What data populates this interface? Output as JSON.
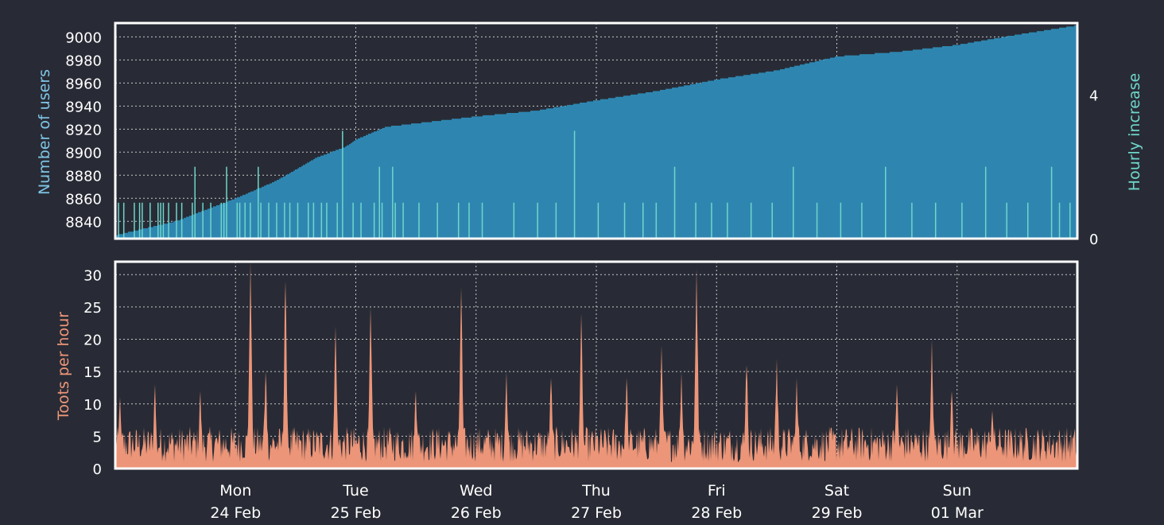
{
  "colors": {
    "background": "#282b35",
    "frame": "#ffffff",
    "grid": "#c8c8c8",
    "users_fill": "#2e86b0",
    "hourly_fill": "#6fd6cc",
    "toots_fill": "#ec9578",
    "users_label": "#7fc6e6",
    "hourly_label": "#6fd6cc",
    "toots_label": "#ec9578"
  },
  "chart_data": [
    {
      "type": "area",
      "panel": "users",
      "ylabel": "Number of users",
      "y2label": "Hourly increase",
      "ylim": [
        8825,
        9012
      ],
      "yticks": [
        8840,
        8860,
        8880,
        8900,
        8920,
        8940,
        8960,
        8980,
        9000
      ],
      "y2lim": [
        0,
        6
      ],
      "y2ticks": [
        0,
        4
      ],
      "grid": true,
      "x_range": [
        "2020-02-23T00:00",
        "2020-03-02T00:00"
      ],
      "series": [
        {
          "points": [
            [
              "2020-02-23T00:00",
              8828
            ],
            [
              "2020-02-23T12:00",
              8840
            ],
            [
              "2020-02-24T00:00",
              8860
            ],
            [
              "2020-02-24T08:00",
              8875
            ],
            [
              "2020-02-24T16:00",
              8895
            ],
            [
              "2020-02-24T22:00",
              8905
            ],
            [
              "2020-02-25T00:00",
              8911
            ],
            [
              "2020-02-25T06:00",
              8922
            ],
            [
              "2020-02-25T12:00",
              8925
            ],
            [
              "2020-02-26T00:00",
              8931
            ],
            [
              "2020-02-26T12:00",
              8936
            ],
            [
              "2020-02-27T00:00",
              8945
            ],
            [
              "2020-02-27T12:00",
              8953
            ],
            [
              "2020-02-28T00:00",
              8963
            ],
            [
              "2020-02-28T12:00",
              8971
            ],
            [
              "2020-02-29T00:00",
              8983
            ],
            [
              "2020-02-29T12:00",
              8987
            ],
            [
              "2020-03-01T00:00",
              8993
            ],
            [
              "2020-03-01T12:00",
              9002
            ],
            [
              "2020-03-02T00:00",
              9010
            ]
          ]
        },
        {
          "values_hourly": [
            0,
            1,
            0,
            1,
            0,
            0,
            0,
            1,
            0,
            1,
            1,
            0,
            0,
            1,
            0,
            0,
            1,
            1,
            1,
            0,
            1,
            0,
            0,
            1,
            0,
            1,
            0,
            0,
            0,
            1,
            2,
            0,
            0,
            1,
            0,
            0,
            1,
            0,
            0,
            0,
            1,
            1,
            2,
            0,
            0,
            0,
            1,
            1,
            0,
            1,
            0,
            1,
            0,
            0,
            2,
            1,
            0,
            0,
            1,
            0,
            0,
            1,
            0,
            0,
            1,
            0,
            1,
            0,
            0,
            1,
            0,
            0,
            0,
            1,
            0,
            1,
            0,
            0,
            1,
            0,
            1,
            0,
            0,
            0,
            1,
            0,
            3,
            0,
            0,
            0,
            1,
            0,
            0,
            1,
            0,
            0,
            0,
            0,
            1,
            0,
            2,
            1,
            0,
            0,
            0,
            2,
            1,
            0,
            0,
            1,
            0,
            0,
            0,
            0,
            0,
            1,
            0,
            0,
            0,
            0,
            0,
            0,
            1,
            0,
            0,
            0,
            0,
            0,
            0,
            0,
            1,
            0,
            0,
            0,
            1,
            0,
            0,
            0,
            0,
            1,
            0,
            0,
            0,
            0,
            0,
            0,
            0,
            0,
            0,
            0,
            0,
            1,
            0,
            0,
            0,
            0,
            0,
            0,
            0,
            0,
            1,
            0,
            0,
            0,
            0,
            0,
            0,
            1,
            0,
            0,
            0,
            0,
            0,
            0,
            3,
            0,
            0,
            0,
            0,
            0,
            0,
            0,
            0,
            1,
            0,
            0,
            0,
            0,
            0,
            0,
            0,
            0,
            0,
            1,
            0,
            0,
            0,
            0,
            0,
            0,
            1,
            0,
            0,
            0,
            0,
            1,
            0,
            0,
            0,
            0,
            0,
            0,
            2,
            0,
            0,
            0,
            0,
            0,
            0,
            0,
            1,
            0,
            0,
            0,
            0,
            0,
            1,
            0,
            0,
            0,
            0,
            0,
            1,
            0,
            0,
            0,
            0,
            0,
            0,
            0,
            0,
            1,
            0,
            0,
            0,
            0,
            0,
            0,
            0,
            1,
            0,
            0,
            0,
            0,
            0,
            0,
            0,
            2,
            0,
            0,
            0,
            0,
            0,
            0,
            0,
            0,
            1,
            0,
            0,
            0,
            0,
            0,
            0,
            0,
            0,
            1,
            0,
            0,
            0,
            0,
            0,
            0,
            0,
            1,
            0,
            0,
            0,
            0,
            0,
            0,
            0,
            0,
            2,
            0,
            0,
            0,
            0,
            0,
            0,
            0,
            0,
            0,
            1,
            0,
            0,
            0,
            0,
            0,
            0,
            0,
            0,
            1,
            0,
            0,
            0,
            0,
            0,
            0,
            0,
            0,
            0,
            1,
            0,
            0,
            0,
            0,
            0,
            0,
            0,
            0,
            2,
            0,
            0,
            0,
            0,
            0,
            0,
            0,
            1,
            0,
            0,
            0,
            0,
            0,
            0,
            0,
            1,
            0,
            0,
            0,
            0,
            0,
            0,
            0,
            0,
            2,
            0,
            0,
            1,
            0,
            0,
            0,
            1,
            0,
            0
          ]
        }
      ]
    },
    {
      "type": "bar",
      "panel": "toots",
      "ylabel": "Toots per hour",
      "ylim": [
        0,
        32
      ],
      "yticks": [
        0,
        5,
        10,
        15,
        20,
        25,
        30
      ],
      "grid": true,
      "x_range": [
        "2020-02-23T00:00",
        "2020-03-02T00:00"
      ],
      "peaks": [
        [
          "2020-02-23T01:00",
          11
        ],
        [
          "2020-02-23T08:00",
          13
        ],
        [
          "2020-02-23T17:00",
          12
        ],
        [
          "2020-02-24T03:00",
          32
        ],
        [
          "2020-02-24T06:00",
          15
        ],
        [
          "2020-02-24T10:00",
          29
        ],
        [
          "2020-02-24T20:00",
          22
        ],
        [
          "2020-02-25T03:00",
          25
        ],
        [
          "2020-02-25T12:00",
          12
        ],
        [
          "2020-02-25T21:00",
          28
        ],
        [
          "2020-02-26T06:00",
          15
        ],
        [
          "2020-02-26T15:00",
          14
        ],
        [
          "2020-02-26T21:00",
          24
        ],
        [
          "2020-02-27T06:00",
          14
        ],
        [
          "2020-02-27T13:00",
          19
        ],
        [
          "2020-02-27T17:00",
          15
        ],
        [
          "2020-02-27T20:00",
          31
        ],
        [
          "2020-02-28T06:00",
          16
        ],
        [
          "2020-02-28T12:00",
          17
        ],
        [
          "2020-02-28T16:00",
          14
        ],
        [
          "2020-02-29T12:00",
          13
        ],
        [
          "2020-02-29T19:00",
          20
        ],
        [
          "2020-02-29T23:00",
          12
        ],
        [
          "2020-03-01T07:00",
          9
        ]
      ],
      "categories": [
        [
          "Mon",
          "24 Feb"
        ],
        [
          "Tue",
          "25 Feb"
        ],
        [
          "Wed",
          "26 Feb"
        ],
        [
          "Thu",
          "27 Feb"
        ],
        [
          "Fri",
          "28 Feb"
        ],
        [
          "Sat",
          "29 Feb"
        ],
        [
          "Sun",
          "01 Mar"
        ]
      ]
    }
  ]
}
